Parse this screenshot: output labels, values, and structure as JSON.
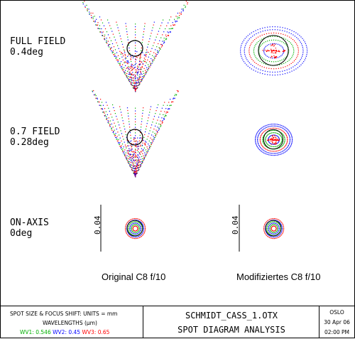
{
  "chart_data": {
    "type": "scatter",
    "title": "SPOT DIAGRAM ANALYSIS",
    "file": "SCHMIDT_CASS_1.OTX",
    "columns": [
      "Original C8  f/10",
      "Modifiziertes C8  f/10"
    ],
    "rows": [
      {
        "label": "FULL FIELD",
        "value": "0.4deg"
      },
      {
        "label": "0.7 FIELD",
        "value": "0.28deg"
      },
      {
        "label": "ON-AXIS",
        "value": "0deg"
      }
    ],
    "scale_label": "0.04",
    "units_line": "SPOT SIZE & FOCUS SHIFT: UNITS = mm",
    "wavelengths_title": "WAVELENGTHS (μm)",
    "wavelengths": [
      {
        "name": "WV1:",
        "value": "0.546",
        "color": "#00b000"
      },
      {
        "name": "WV2:",
        "value": "0.45",
        "color": "#0000ff"
      },
      {
        "name": "WV3:",
        "value": "0.65",
        "color": "#ff0000"
      }
    ],
    "program": "OSLO",
    "date": "30 Apr 06",
    "time": "02:00 PM"
  }
}
